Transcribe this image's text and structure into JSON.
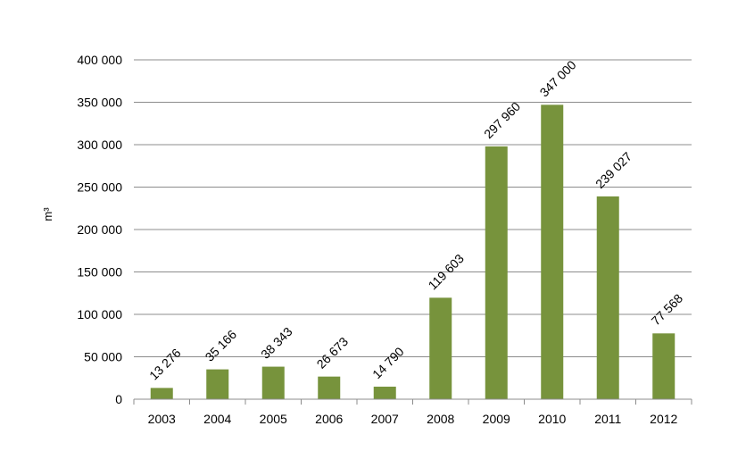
{
  "chart_data": {
    "type": "bar",
    "categories": [
      "2003",
      "2004",
      "2005",
      "2006",
      "2007",
      "2008",
      "2009",
      "2010",
      "2011",
      "2012"
    ],
    "values": [
      13276,
      35166,
      38343,
      26673,
      14790,
      119603,
      297960,
      347000,
      239027,
      77568
    ],
    "data_labels": [
      "13 276",
      "35 166",
      "38 343",
      "26 673",
      "14 790",
      "119 603",
      "297 960",
      "347 000",
      "239 027",
      "77 568"
    ],
    "title": "",
    "xlabel": "",
    "ylabel": "m³",
    "ylim": [
      0,
      400000
    ],
    "yticks": [
      0,
      50000,
      100000,
      150000,
      200000,
      250000,
      300000,
      350000,
      400000
    ],
    "ytick_labels": [
      "0",
      "50 000",
      "100 000",
      "150 000",
      "200 000",
      "250 000",
      "300 000",
      "350 000",
      "400 000"
    ],
    "grid": true,
    "legend": "none",
    "bar_color": "#77933c"
  }
}
